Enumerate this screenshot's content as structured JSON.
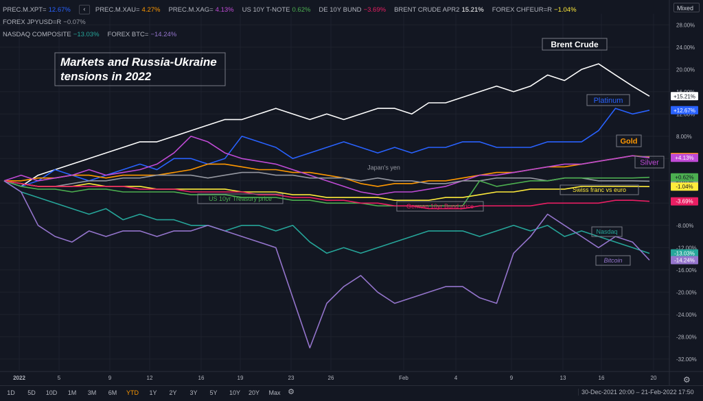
{
  "legend": {
    "row1": [
      {
        "symbol": "PREC.M.XPT=",
        "value": "12.67%",
        "color": "#2962ff"
      },
      {
        "symbol": "PREC.M.XAU=",
        "value": "4.27%",
        "color": "#ff9800"
      },
      {
        "symbol": "PREC.M.XAG=",
        "value": "4.13%",
        "color": "#c04bd6"
      },
      {
        "symbol": "US 10Y T-NOTE",
        "value": "0.62%",
        "color": "#4caf50"
      },
      {
        "symbol": "DE 10Y BUND",
        "value": "−3.69%",
        "color": "#e91e63"
      },
      {
        "symbol": "BRENT CRUDE APR2",
        "value": "15.21%",
        "color": "#ffffff"
      },
      {
        "symbol": "FOREX CHFEUR=R",
        "value": "−1.04%",
        "color": "#ffeb3b"
      },
      {
        "symbol": "FOREX JPYUSD=R",
        "value": "−0.07%",
        "color": "#9598a1"
      }
    ],
    "row2": [
      {
        "symbol": "NASDAQ COMPOSITE",
        "value": "−13.03%",
        "color": "#26a69a"
      },
      {
        "symbol": "FOREX BTC=",
        "value": "−14.24%",
        "color": "#9575cd"
      }
    ],
    "collapse_glyph": "‹"
  },
  "scale_mode": "Mixed",
  "chart_data": {
    "type": "line",
    "title": "Markets and Russia-Ukraine tensions in 2022",
    "x_ticks": [
      "2022",
      "5",
      "9",
      "12",
      "16",
      "19",
      "23",
      "26",
      "Feb",
      "4",
      "9",
      "13",
      "16",
      "20"
    ],
    "y_ticks": [
      "28.00%",
      "24.00%",
      "20.00%",
      "16.00%",
      "12.00%",
      "8.00%",
      "4.00%",
      "0.00%",
      "-4.00%",
      "-8.00%",
      "-12.00%",
      "-16.00%",
      "-20.00%",
      "-24.00%",
      "-28.00%",
      "-32.00%"
    ],
    "ylim": [
      -34,
      30
    ],
    "series": [
      {
        "name": "Brent Crude",
        "color": "#ffffff",
        "last_label": "+15.21%",
        "values": [
          0,
          -1,
          1,
          2,
          3,
          4,
          5,
          6,
          7,
          7,
          8,
          9,
          10,
          11,
          11,
          12,
          13,
          12,
          11,
          12,
          11,
          12,
          13,
          13,
          12,
          14,
          14,
          15,
          16,
          17,
          16,
          17,
          19,
          18,
          20,
          21,
          19,
          17,
          15.2
        ]
      },
      {
        "name": "Platinum",
        "color": "#2962ff",
        "last_label": "+12.67%",
        "values": [
          0,
          -1,
          0,
          2,
          1,
          0,
          1,
          2,
          3,
          2,
          4,
          4,
          3,
          4,
          8,
          7,
          6,
          4,
          5,
          6,
          7,
          6,
          5,
          6,
          5,
          6,
          6,
          7,
          7,
          6,
          6,
          6,
          7,
          7,
          7,
          9,
          13,
          12,
          12.67
        ]
      },
      {
        "name": "Gold",
        "color": "#ff9800",
        "last_label": "+4.27%",
        "values": [
          0,
          0,
          0.5,
          0.5,
          1,
          1,
          0.5,
          1,
          1,
          1,
          1.5,
          2,
          3,
          3,
          2.5,
          2,
          2,
          1.5,
          1.5,
          1,
          0.5,
          -0.5,
          -1,
          -0.5,
          -0.5,
          0,
          0,
          0.5,
          1,
          1.5,
          1.5,
          2,
          2.5,
          2.5,
          3,
          3.5,
          4,
          4.5,
          4.27
        ]
      },
      {
        "name": "Silver",
        "color": "#c04bd6",
        "last_label": "+4.13%",
        "values": [
          0,
          1,
          0,
          0.5,
          1,
          2,
          1,
          1.5,
          2,
          3,
          5,
          8,
          7,
          5,
          4,
          3.5,
          3,
          2,
          1,
          0,
          -1,
          -2,
          -2.5,
          -2,
          -2,
          -1.5,
          -1,
          0,
          1,
          1,
          1.5,
          2,
          2.5,
          3,
          3,
          3.5,
          4,
          4.5,
          4.13
        ]
      },
      {
        "name": "Japan's yen",
        "color": "#9598a1",
        "last_label": "-0.07%",
        "values": [
          0,
          -0.5,
          -1,
          -1,
          -0.5,
          0,
          0,
          0.5,
          0.5,
          1,
          1,
          1,
          0.5,
          1,
          1.5,
          1.5,
          1,
          1,
          0.5,
          0.5,
          0.5,
          0,
          0.5,
          0,
          0,
          -0.5,
          -0.5,
          0,
          0,
          0.5,
          0.5,
          0.5,
          0,
          0.5,
          0.5,
          0,
          0,
          0,
          -0.07
        ]
      },
      {
        "name": "US 10yr Treasury price",
        "color": "#4caf50",
        "last_label": "+0.62%",
        "values": [
          0,
          -1,
          -1.5,
          -1.5,
          -2,
          -1.5,
          -1.5,
          -2,
          -2,
          -2,
          -2,
          -2.5,
          -2.5,
          -2.5,
          -3,
          -3,
          -3,
          -3.5,
          -3.5,
          -4,
          -4,
          -4,
          -4.5,
          -4.5,
          -4.5,
          -4.5,
          -4.5,
          -4.5,
          0,
          -1,
          -0.5,
          0,
          0,
          0.5,
          0.5,
          0.5,
          0.5,
          0.5,
          0.62
        ]
      },
      {
        "name": "Swiss franc vs euro",
        "color": "#ffeb3b",
        "last_label": "-1.04%",
        "values": [
          0,
          -0.5,
          -1,
          -1,
          -1,
          -0.5,
          -1,
          -1,
          -1,
          -1.5,
          -1.5,
          -1.5,
          -1.5,
          -1.5,
          -2,
          -2,
          -2,
          -2.5,
          -2.5,
          -3,
          -3,
          -3,
          -3,
          -3.5,
          -3.5,
          -3.5,
          -3,
          -3,
          -2.5,
          -2,
          -2,
          -1.5,
          -1.5,
          -1.5,
          -1,
          -1,
          -1,
          -1,
          -1.04
        ]
      },
      {
        "name": "German 10yr Bund price",
        "color": "#e91e63",
        "last_label": "-3.69%",
        "values": [
          0,
          -0.5,
          -1,
          -1,
          -1,
          -1,
          -1,
          -1,
          -1.5,
          -1.5,
          -1.5,
          -2,
          -2,
          -2,
          -2,
          -2.5,
          -2.5,
          -3,
          -3,
          -3.5,
          -3.5,
          -4,
          -4,
          -4.5,
          -4.5,
          -5,
          -5,
          -5,
          -4.5,
          -4.5,
          -4.5,
          -4.5,
          -4,
          -4,
          -4,
          -4,
          -3.5,
          -3.5,
          -3.69
        ]
      },
      {
        "name": "Nasdaq",
        "color": "#26a69a",
        "last_label": "-13.03%",
        "values": [
          0,
          -2,
          -3,
          -4,
          -5,
          -6,
          -5,
          -7,
          -6,
          -7,
          -7,
          -8,
          -8,
          -9,
          -8,
          -8,
          -9,
          -8,
          -11,
          -13,
          -12,
          -13,
          -12,
          -11,
          -10,
          -9,
          -9,
          -9,
          -10,
          -9,
          -8,
          -9,
          -8,
          -10,
          -9,
          -10,
          -11,
          -12,
          -13.03
        ]
      },
      {
        "name": "Bitcoin",
        "color": "#9575cd",
        "last_label": "-14.24%",
        "values": [
          0,
          -2,
          -8,
          -10,
          -11,
          -9,
          -10,
          -9,
          -9,
          -10,
          -9,
          -9,
          -8,
          -9,
          -10,
          -11,
          -12,
          -21,
          -30,
          -22,
          -19,
          -17,
          -20,
          -22,
          -21,
          -20,
          -19,
          -19,
          -21,
          -22,
          -13,
          -10,
          -6,
          -8,
          -10,
          -12,
          -10,
          -11,
          -14.24
        ]
      }
    ],
    "annotations": [
      {
        "text": "Brent Crude",
        "series": 0
      },
      {
        "text": "Platinum",
        "series": 1
      },
      {
        "text": "Gold",
        "series": 2
      },
      {
        "text": "Silver",
        "series": 3
      },
      {
        "text": "Japan's yen",
        "series": 4
      },
      {
        "text": "US 10yr Treasury price",
        "series": 5
      },
      {
        "text": "Swiss franc vs euro",
        "series": 6
      },
      {
        "text": "German 10yr Bund price",
        "series": 7
      },
      {
        "text": "Nasdaq",
        "series": 8
      },
      {
        "text": "Bitcoin",
        "series": 9
      }
    ]
  },
  "timeframes": [
    {
      "label": "1D",
      "active": false
    },
    {
      "label": "5D",
      "active": false
    },
    {
      "label": "10D",
      "active": false
    },
    {
      "label": "1M",
      "active": false
    },
    {
      "label": "3M",
      "active": false
    },
    {
      "label": "6M",
      "active": false
    },
    {
      "label": "YTD",
      "active": true
    },
    {
      "label": "1Y",
      "active": false
    },
    {
      "label": "2Y",
      "active": false
    },
    {
      "label": "3Y",
      "active": false
    },
    {
      "label": "5Y",
      "active": false
    },
    {
      "label": "10Y",
      "active": false
    },
    {
      "label": "20Y",
      "active": false
    },
    {
      "label": "Max",
      "active": false
    }
  ],
  "date_range": "30-Dec-2021 20:00 – 21-Feb-2022 17:50",
  "icons": {
    "settings": "gear-icon",
    "axis_settings": "gear-icon"
  }
}
